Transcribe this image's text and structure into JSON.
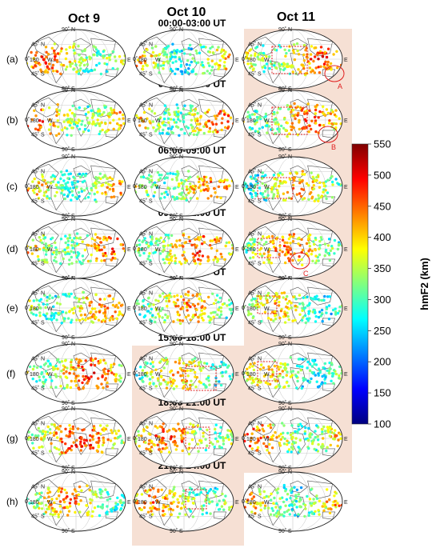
{
  "chart_data": {
    "type": "scatter",
    "columns": [
      "Oct 9",
      "Oct 10",
      "Oct 11"
    ],
    "rows": [
      "(a)",
      "(b)",
      "(c)",
      "(d)",
      "(e)",
      "(f)",
      "(g)",
      "(h)"
    ],
    "time_windows": [
      "00:00-03:00 UT",
      "03:00-06:00 UT",
      "06:00-09:00 UT",
      "09:00-12:00 UT",
      "12:00-15:00 UT",
      "15:00-18:00 UT",
      "18:00-21:00 UT",
      "21:00-24:00 UT"
    ],
    "lat_ticks": [
      "90˚ N",
      "45˚ N",
      "0˚",
      "45˚ S",
      "90˚ S"
    ],
    "lon_ticks": [
      "180",
      "W",
      "E"
    ],
    "colorbar": {
      "label": "hmF2 (km)",
      "ticks": [
        100,
        150,
        200,
        250,
        300,
        350,
        400,
        450,
        500,
        550
      ],
      "range": [
        100,
        550
      ],
      "colormap": [
        "#00007f",
        "#0000ff",
        "#0080ff",
        "#00ffff",
        "#80ff80",
        "#ffff00",
        "#ff8000",
        "#ff0000",
        "#7f0000"
      ]
    },
    "annotations": [
      {
        "text": "A",
        "row": 0,
        "col": 2
      },
      {
        "text": "B",
        "row": 1,
        "col": 2
      },
      {
        "text": "C",
        "row": 3,
        "col": 2
      }
    ],
    "highlight_color": "#f6e0d4",
    "marker_color": "#e02020",
    "typical_hmF2_by_panel": [
      [
        390,
        360,
        400
      ],
      [
        400,
        390,
        390
      ],
      [
        370,
        380,
        360
      ],
      [
        390,
        400,
        380
      ],
      [
        380,
        370,
        350
      ],
      [
        400,
        360,
        350
      ],
      [
        420,
        400,
        390
      ],
      [
        380,
        380,
        370
      ]
    ]
  }
}
